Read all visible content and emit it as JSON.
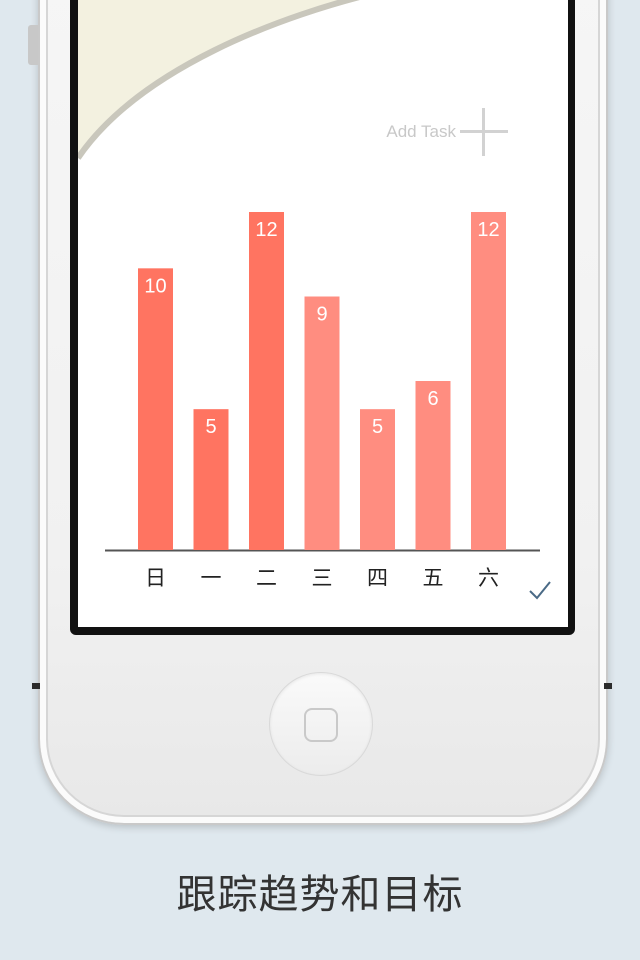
{
  "screen": {
    "add_task_label": "Add Task"
  },
  "chart_data": {
    "type": "bar",
    "categories": [
      "日",
      "一",
      "二",
      "三",
      "四",
      "五",
      "六"
    ],
    "values": [
      10,
      5,
      12,
      9,
      5,
      6,
      12
    ],
    "ylim": [
      0,
      12
    ],
    "colors": [
      "#ff7461",
      "#ff7461",
      "#ff7461",
      "#ff8d80",
      "#ff8d80",
      "#ff8d80",
      "#ff8d80"
    ],
    "label_color": "#ffffff",
    "axis_color": "#555555"
  },
  "caption": "跟踪趋势和目标"
}
